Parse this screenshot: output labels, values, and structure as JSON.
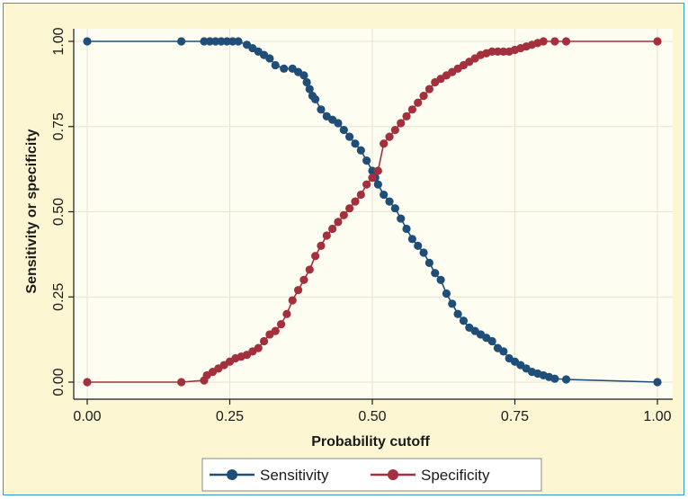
{
  "chart_data": {
    "type": "line",
    "title": "",
    "xlabel": "Probability cutoff",
    "ylabel": "Sensitivity or specificity",
    "xlim": [
      0,
      1
    ],
    "ylim": [
      0,
      1
    ],
    "x_ticks": [
      "0.00",
      "0.25",
      "0.50",
      "0.75",
      "1.00"
    ],
    "y_ticks": [
      "0.00",
      "0.25",
      "0.50",
      "0.75",
      "1.00"
    ],
    "grid": true,
    "legend_position": "bottom",
    "series": [
      {
        "name": "Sensitivity",
        "color": "#1f4e79",
        "x": [
          0.0,
          0.165,
          0.205,
          0.215,
          0.225,
          0.235,
          0.245,
          0.255,
          0.265,
          0.28,
          0.29,
          0.3,
          0.31,
          0.32,
          0.33,
          0.345,
          0.36,
          0.37,
          0.38,
          0.385,
          0.39,
          0.395,
          0.4,
          0.41,
          0.42,
          0.43,
          0.44,
          0.45,
          0.46,
          0.47,
          0.48,
          0.49,
          0.5,
          0.505,
          0.51,
          0.52,
          0.53,
          0.54,
          0.55,
          0.56,
          0.57,
          0.58,
          0.59,
          0.6,
          0.61,
          0.62,
          0.63,
          0.64,
          0.65,
          0.66,
          0.67,
          0.68,
          0.69,
          0.7,
          0.71,
          0.72,
          0.73,
          0.74,
          0.75,
          0.76,
          0.77,
          0.78,
          0.79,
          0.8,
          0.81,
          0.82,
          0.84,
          1.0
        ],
        "values": [
          1.0,
          1.0,
          1.0,
          1.0,
          1.0,
          1.0,
          1.0,
          1.0,
          1.0,
          0.99,
          0.98,
          0.97,
          0.96,
          0.95,
          0.93,
          0.92,
          0.92,
          0.91,
          0.9,
          0.88,
          0.86,
          0.84,
          0.83,
          0.8,
          0.78,
          0.77,
          0.76,
          0.74,
          0.72,
          0.7,
          0.68,
          0.65,
          0.62,
          0.6,
          0.58,
          0.55,
          0.53,
          0.51,
          0.48,
          0.45,
          0.42,
          0.4,
          0.38,
          0.35,
          0.32,
          0.3,
          0.26,
          0.23,
          0.2,
          0.18,
          0.16,
          0.15,
          0.14,
          0.13,
          0.12,
          0.1,
          0.09,
          0.07,
          0.06,
          0.05,
          0.04,
          0.03,
          0.025,
          0.02,
          0.015,
          0.01,
          0.008,
          0.0
        ]
      },
      {
        "name": "Specificity",
        "color": "#a3303c",
        "x": [
          0.0,
          0.165,
          0.205,
          0.21,
          0.22,
          0.23,
          0.24,
          0.25,
          0.26,
          0.27,
          0.28,
          0.29,
          0.3,
          0.31,
          0.32,
          0.33,
          0.34,
          0.35,
          0.36,
          0.37,
          0.38,
          0.39,
          0.4,
          0.41,
          0.42,
          0.43,
          0.44,
          0.45,
          0.46,
          0.47,
          0.48,
          0.49,
          0.5,
          0.51,
          0.52,
          0.53,
          0.54,
          0.55,
          0.56,
          0.57,
          0.58,
          0.59,
          0.6,
          0.61,
          0.62,
          0.63,
          0.64,
          0.65,
          0.66,
          0.67,
          0.68,
          0.69,
          0.7,
          0.71,
          0.72,
          0.73,
          0.74,
          0.75,
          0.76,
          0.77,
          0.78,
          0.79,
          0.8,
          0.82,
          0.84,
          1.0
        ],
        "values": [
          0.0,
          0.0,
          0.005,
          0.02,
          0.03,
          0.04,
          0.05,
          0.06,
          0.07,
          0.075,
          0.08,
          0.09,
          0.1,
          0.12,
          0.14,
          0.15,
          0.17,
          0.2,
          0.24,
          0.27,
          0.3,
          0.33,
          0.37,
          0.4,
          0.43,
          0.45,
          0.47,
          0.49,
          0.51,
          0.53,
          0.55,
          0.58,
          0.6,
          0.62,
          0.7,
          0.72,
          0.74,
          0.76,
          0.78,
          0.8,
          0.82,
          0.84,
          0.86,
          0.88,
          0.89,
          0.9,
          0.91,
          0.92,
          0.93,
          0.94,
          0.95,
          0.96,
          0.965,
          0.97,
          0.97,
          0.97,
          0.97,
          0.975,
          0.98,
          0.985,
          0.99,
          0.995,
          1.0,
          1.0,
          1.0,
          1.0
        ]
      }
    ]
  },
  "colors": {
    "frame_background": "#fdf6d3",
    "frame_border": "#2e9ccf",
    "plot_background": "#fefdf2",
    "grid": "#e6e3cf"
  }
}
